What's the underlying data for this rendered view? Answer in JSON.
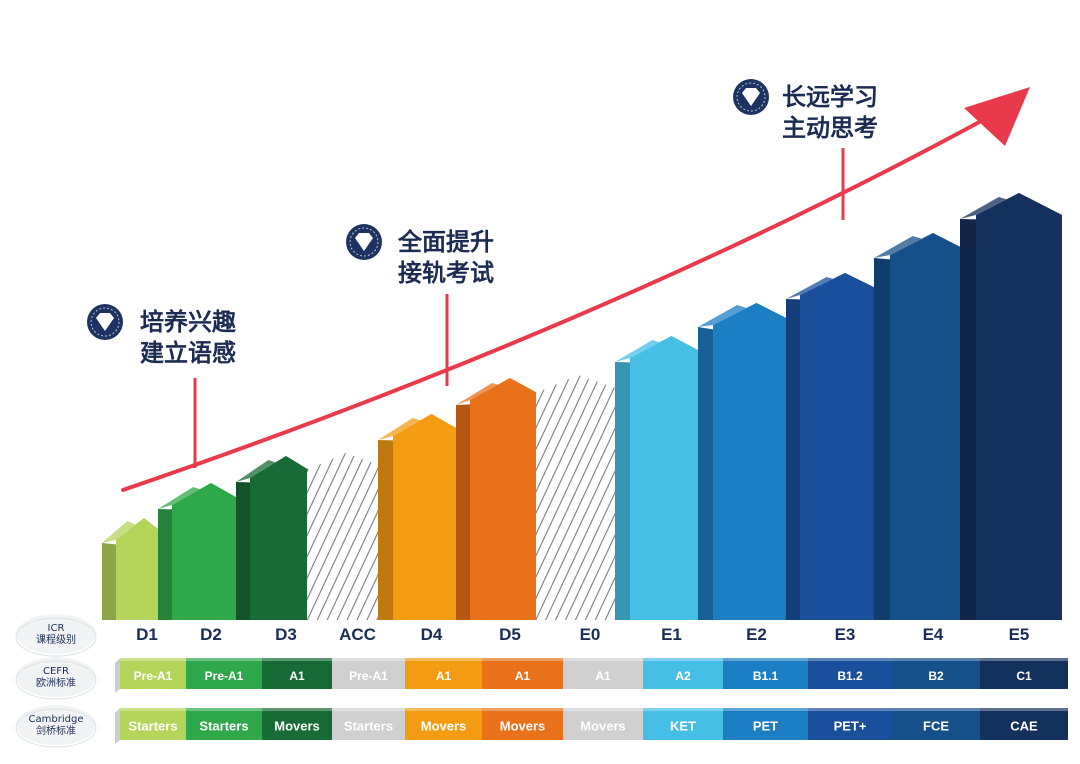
{
  "chart_data": {
    "type": "bar",
    "levels": [
      "D1",
      "D2",
      "D3",
      "ACC",
      "D4",
      "D5",
      "E0",
      "E1",
      "E2",
      "E3",
      "E4",
      "E5"
    ],
    "colors": [
      "#b5d45a",
      "#2ea84a",
      "#176b35",
      "hatch",
      "#f39c12",
      "#e8711a",
      "hatch",
      "#45bfe6",
      "#1c7ec3",
      "#1a4f9c",
      "#15508a",
      "#14305c"
    ],
    "milestones": [
      {
        "lines": [
          "培养兴趣",
          "建立语感"
        ]
      },
      {
        "lines": [
          "全面提升",
          "接轨考试"
        ]
      },
      {
        "lines": [
          "长远学习",
          "主动思考"
        ]
      }
    ],
    "rows": [
      {
        "label_lines": [
          "ICR",
          "课程级别"
        ]
      },
      {
        "label_lines": [
          "CEFR",
          "欧洲标准"
        ],
        "cells": [
          "Pre-A1",
          "Pre-A1",
          "A1",
          "Pre-A1",
          "A1",
          "A1",
          "A1",
          "A2",
          "B1.1",
          "B1.2",
          "B2",
          "C1"
        ]
      },
      {
        "label_lines": [
          "Cambridge",
          "剑桥标准"
        ],
        "cells": [
          "Starters",
          "Starters",
          "Movers",
          "Starters",
          "Movers",
          "Movers",
          "Movers",
          "KET",
          "PET",
          "PET+",
          "FCE",
          "CAE"
        ]
      }
    ]
  }
}
